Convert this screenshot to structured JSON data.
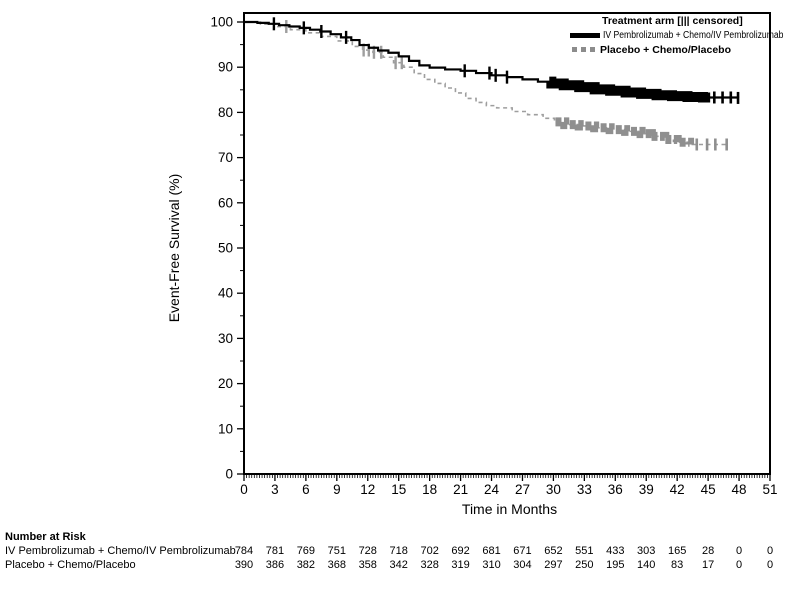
{
  "chart_data": {
    "type": "line",
    "subtype": "kaplan-meier-step",
    "title": "",
    "xlabel": "Time in Months",
    "ylabel": "Event-Free Survival (%)",
    "xlim": [
      0,
      51
    ],
    "ylim": [
      0,
      100
    ],
    "x_ticks": [
      0,
      3,
      6,
      9,
      12,
      15,
      18,
      21,
      24,
      27,
      30,
      33,
      36,
      39,
      42,
      45,
      48,
      51
    ],
    "y_ticks": [
      0,
      10,
      20,
      30,
      40,
      50,
      60,
      70,
      80,
      90,
      100
    ],
    "x_minor_step": 0.25,
    "y_minor_step": 5,
    "grid": "off",
    "legend": {
      "title": "Treatment arm [||| censored]",
      "position": "top-right"
    },
    "series": [
      {
        "name": "Placebo + Chemo/Placebo",
        "color": "#9e9e9e",
        "band_color": "#8f8f8f",
        "style": "dashed",
        "points": [
          [
            0,
            100
          ],
          [
            1.6,
            99.5
          ],
          [
            3,
            99.0
          ],
          [
            4.5,
            98.3
          ],
          [
            6,
            97.6
          ],
          [
            7.5,
            96.8
          ],
          [
            9,
            95.8
          ],
          [
            10.5,
            94.6
          ],
          [
            11.5,
            93.8
          ],
          [
            12.5,
            93.3
          ],
          [
            13.5,
            92.2
          ],
          [
            14.5,
            91.0
          ],
          [
            15.5,
            90.0
          ],
          [
            16.5,
            88.6
          ],
          [
            17.5,
            87.3
          ],
          [
            18.5,
            86.4
          ],
          [
            19.5,
            85.4
          ],
          [
            20.5,
            84.3
          ],
          [
            21.5,
            83.1
          ],
          [
            22.5,
            82.2
          ],
          [
            23.5,
            81.5
          ],
          [
            24.5,
            81.0
          ],
          [
            26,
            80.2
          ],
          [
            27.5,
            79.5
          ],
          [
            29,
            78.7
          ],
          [
            30.1,
            77.9
          ],
          [
            31.1,
            77.3
          ],
          [
            32.5,
            77.0
          ],
          [
            34,
            76.6
          ],
          [
            35.5,
            76.2
          ],
          [
            37,
            75.8
          ],
          [
            38.5,
            75.3
          ],
          [
            39.5,
            74.7
          ],
          [
            40.8,
            74.0
          ],
          [
            42,
            73.4
          ],
          [
            43.2,
            72.9
          ],
          [
            46.9,
            72.8
          ]
        ],
        "censor_ticks": [
          4.1,
          11.6,
          12.1,
          12.6,
          13.3,
          14.7,
          15.3
        ],
        "censor_band": [
          30.2,
          43.2
        ],
        "tail_ticks": [
          43.9,
          44.9,
          45.7,
          46.8
        ]
      },
      {
        "name": "IV Pembrolizumab + Chemo/IV Pembrolizumab",
        "color": "#000000",
        "band_color": "#000000",
        "style": "solid",
        "points": [
          [
            0,
            100
          ],
          [
            1.3,
            99.8
          ],
          [
            2.4,
            99.6
          ],
          [
            3.4,
            99.3
          ],
          [
            4.4,
            99.0
          ],
          [
            5.4,
            98.7
          ],
          [
            6.4,
            98.3
          ],
          [
            7.4,
            97.9
          ],
          [
            8.4,
            97.3
          ],
          [
            9.4,
            96.6
          ],
          [
            10.4,
            96.0
          ],
          [
            11.2,
            94.9
          ],
          [
            12.1,
            94.3
          ],
          [
            13,
            93.7
          ],
          [
            14,
            93.2
          ],
          [
            15,
            92.4
          ],
          [
            16,
            91.4
          ],
          [
            17,
            90.4
          ],
          [
            18,
            89.9
          ],
          [
            19.5,
            89.5
          ],
          [
            21,
            89.2
          ],
          [
            22.5,
            88.7
          ],
          [
            24,
            88.2
          ],
          [
            25.5,
            87.8
          ],
          [
            27,
            87.3
          ],
          [
            28.5,
            86.8
          ],
          [
            29.8,
            86.4
          ],
          [
            31,
            86.0
          ],
          [
            32.5,
            85.6
          ],
          [
            34,
            85.1
          ],
          [
            35.5,
            84.8
          ],
          [
            37,
            84.4
          ],
          [
            38.5,
            84.1
          ],
          [
            40,
            83.8
          ],
          [
            41.5,
            83.6
          ],
          [
            43,
            83.4
          ],
          [
            44.5,
            83.3
          ],
          [
            47.9,
            83.2
          ]
        ],
        "censor_ticks": [
          2.9,
          5.8,
          7.5,
          9.9,
          21.4,
          23.8,
          24.4,
          25.5
        ],
        "censor_band": [
          29.6,
          45.2
        ],
        "tail_ticks": [
          45.6,
          46.4,
          47.2,
          47.9
        ]
      }
    ]
  },
  "legend_display": {
    "title": "Treatment arm [||| censored]",
    "item1": "IV Pembrolizumab + Chemo/IV Pembrolizumab",
    "item2": "Placebo + Chemo/Placebo"
  },
  "number_at_risk": {
    "heading": "Number at Risk",
    "times": [
      0,
      3,
      6,
      9,
      12,
      15,
      18,
      21,
      24,
      27,
      30,
      33,
      36,
      39,
      42,
      45,
      48,
      51
    ],
    "rows": [
      {
        "label": "IV Pembrolizumab + Chemo/IV Pembrolizumab",
        "counts": [
          784,
          781,
          769,
          751,
          728,
          718,
          702,
          692,
          681,
          671,
          652,
          551,
          433,
          303,
          165,
          28,
          0,
          0
        ]
      },
      {
        "label": "Placebo + Chemo/Placebo",
        "counts": [
          390,
          386,
          382,
          368,
          358,
          342,
          328,
          319,
          310,
          304,
          297,
          250,
          195,
          140,
          83,
          17,
          0,
          0
        ]
      }
    ]
  }
}
